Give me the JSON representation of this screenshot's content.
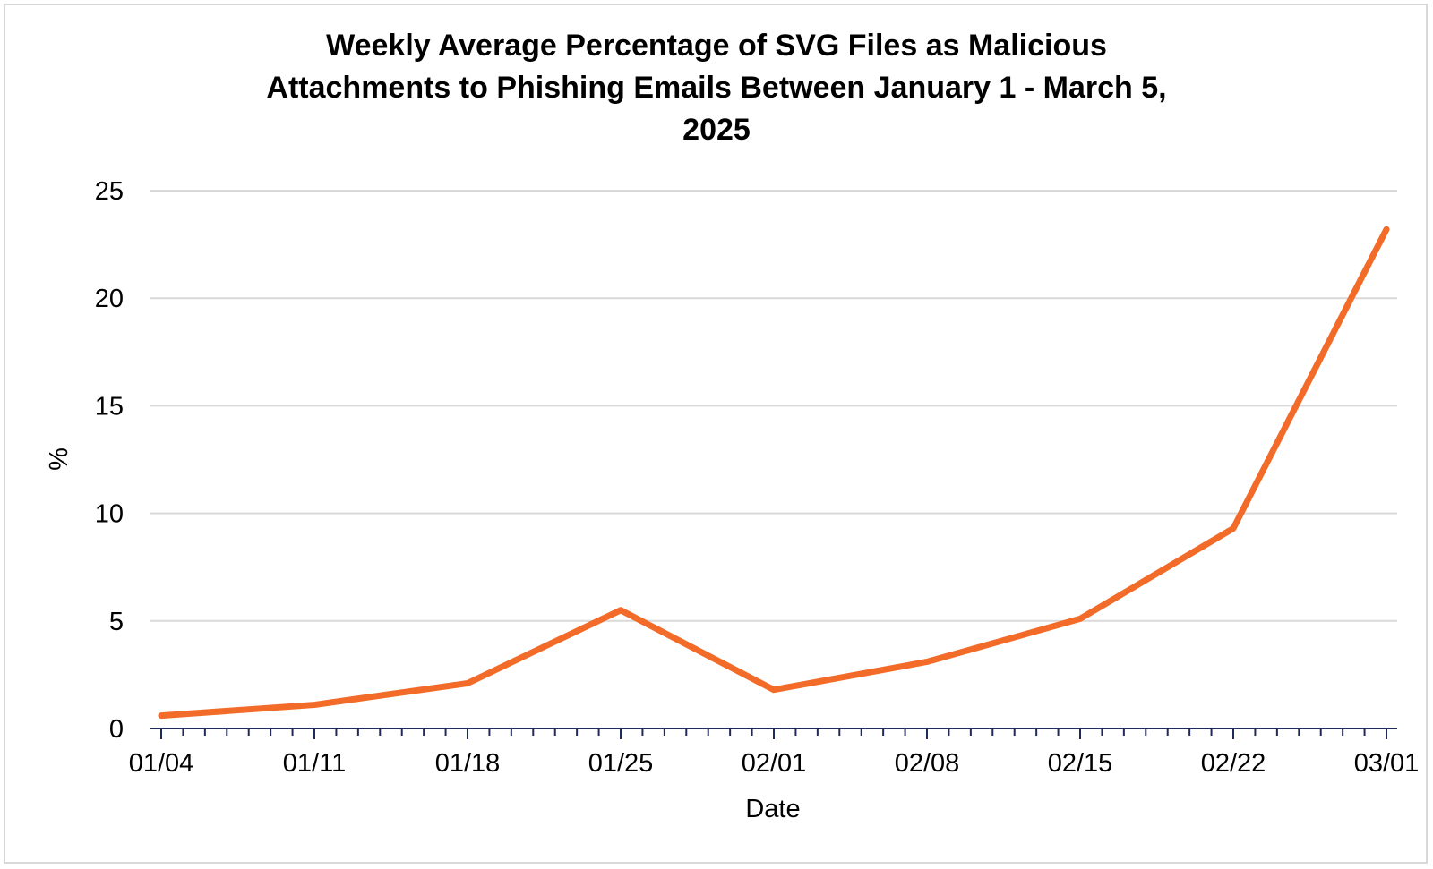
{
  "chart_data": {
    "type": "line",
    "title_lines": [
      "Weekly Average Percentage of SVG Files as Malicious",
      "Attachments to Phishing Emails Between January 1 - March 5,",
      "2025"
    ],
    "xlabel": "Date",
    "ylabel": "%",
    "x": [
      "01/04",
      "01/11",
      "01/18",
      "01/25",
      "02/01",
      "02/08",
      "02/15",
      "02/22",
      "03/01"
    ],
    "y": [
      0.6,
      1.1,
      2.1,
      5.5,
      1.8,
      3.1,
      5.1,
      9.3,
      23.2
    ],
    "ylim": [
      0,
      25
    ],
    "yticks": [
      0,
      5,
      10,
      15,
      20,
      25
    ],
    "grid": true,
    "legend": "none",
    "colors": {
      "line": "#f26b29",
      "grid": "#d9d9d9",
      "axis": "#1f2a5a"
    }
  }
}
